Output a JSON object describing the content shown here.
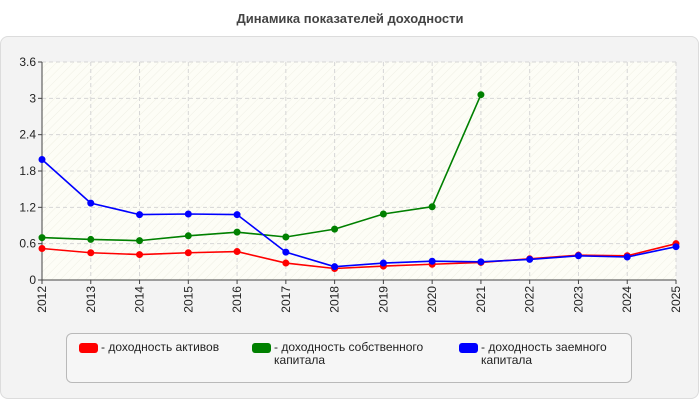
{
  "chart_data": {
    "type": "line",
    "title": "Динамика показателей доходности",
    "categories": [
      "2012",
      "2013",
      "2014",
      "2015",
      "2016",
      "2017",
      "2018",
      "2019",
      "2020",
      "2021",
      "2022",
      "2023",
      "2024",
      "2025"
    ],
    "ylim": [
      0,
      3.6
    ],
    "yticks": [
      "0",
      "0.6",
      "1.2",
      "1.8",
      "2.4",
      "3",
      "3.6"
    ],
    "ytick_values": [
      0,
      0.6,
      1.2,
      1.8,
      2.4,
      3,
      3.6
    ],
    "grid": true,
    "legend_position": "bottom",
    "series": [
      {
        "name": "- доходность активов",
        "color": "#ff0000",
        "values": [
          0.52,
          0.45,
          0.42,
          0.45,
          0.47,
          0.28,
          0.19,
          0.23,
          0.26,
          0.29,
          0.35,
          0.41,
          0.4,
          0.6
        ]
      },
      {
        "name": "- доходность собственного капитала",
        "color": "#008000",
        "values": [
          0.7,
          0.67,
          0.65,
          0.73,
          0.79,
          0.71,
          0.84,
          1.09,
          1.21,
          3.06,
          null,
          null,
          null,
          null
        ]
      },
      {
        "name": "- доходность заемного капитала",
        "color": "#0000ff",
        "values": [
          1.99,
          1.27,
          1.08,
          1.09,
          1.08,
          0.46,
          0.22,
          0.28,
          0.31,
          0.3,
          0.34,
          0.4,
          0.38,
          0.55
        ]
      }
    ]
  }
}
